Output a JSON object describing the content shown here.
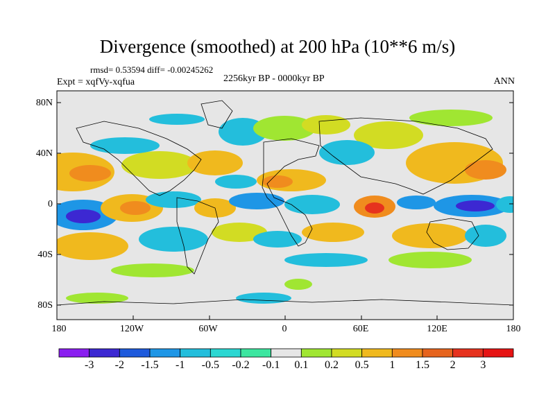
{
  "title": "Divergence (smoothed) at 200 hPa (10**6 m/s)",
  "stats": "rmsd= 0.53594 diff= -0.00245262",
  "experiment": "Expt = xqfVy-xqfua",
  "period": "2256kyr BP - 0000kyr BP",
  "season": "ANN",
  "lat_labels": [
    "80N",
    "40N",
    "0",
    "40S",
    "80S"
  ],
  "lon_labels": [
    "180",
    "120W",
    "60W",
    "0",
    "60E",
    "120E",
    "180"
  ],
  "colorbar": {
    "labels": [
      "-3",
      "-2",
      "-1.5",
      "-1",
      "-0.5",
      "-0.2",
      "-0.1",
      "0.1",
      "0.2",
      "0.5",
      "1",
      "1.5",
      "2",
      "3"
    ],
    "colors": [
      "#8a1ef0",
      "#3c28d2",
      "#1e5adc",
      "#1e96e6",
      "#23bedc",
      "#2bd7d2",
      "#3ce6a0",
      "#e6e6e6",
      "#a0e632",
      "#d2dc23",
      "#f0b91e",
      "#f08c1e",
      "#e6641e",
      "#e6321e",
      "#e61414"
    ]
  }
}
